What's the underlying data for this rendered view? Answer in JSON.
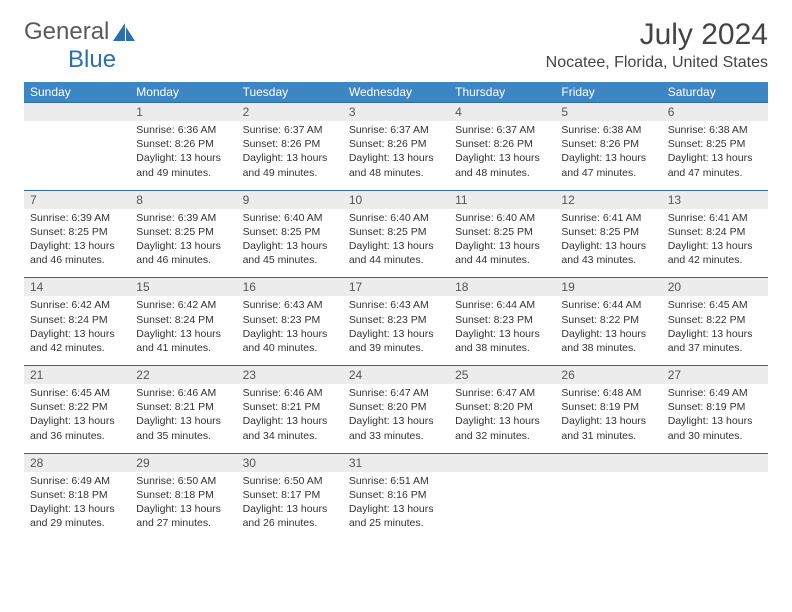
{
  "logo": {
    "word1": "General",
    "word2": "Blue",
    "mark_color": "#2b6fb3"
  },
  "title": "July 2024",
  "location": "Nocatee, Florida, United States",
  "colors": {
    "header_bg": "#3d86c6",
    "header_fg": "#ffffff",
    "daynum_bg": "#ececec",
    "row_border": "#2f6aa3",
    "text": "#333333"
  },
  "day_headers": [
    "Sunday",
    "Monday",
    "Tuesday",
    "Wednesday",
    "Thursday",
    "Friday",
    "Saturday"
  ],
  "weeks": [
    [
      null,
      {
        "n": "1",
        "sunrise": "6:36 AM",
        "sunset": "8:26 PM",
        "daylight": "13 hours and 49 minutes."
      },
      {
        "n": "2",
        "sunrise": "6:37 AM",
        "sunset": "8:26 PM",
        "daylight": "13 hours and 49 minutes."
      },
      {
        "n": "3",
        "sunrise": "6:37 AM",
        "sunset": "8:26 PM",
        "daylight": "13 hours and 48 minutes."
      },
      {
        "n": "4",
        "sunrise": "6:37 AM",
        "sunset": "8:26 PM",
        "daylight": "13 hours and 48 minutes."
      },
      {
        "n": "5",
        "sunrise": "6:38 AM",
        "sunset": "8:26 PM",
        "daylight": "13 hours and 47 minutes."
      },
      {
        "n": "6",
        "sunrise": "6:38 AM",
        "sunset": "8:25 PM",
        "daylight": "13 hours and 47 minutes."
      }
    ],
    [
      {
        "n": "7",
        "sunrise": "6:39 AM",
        "sunset": "8:25 PM",
        "daylight": "13 hours and 46 minutes."
      },
      {
        "n": "8",
        "sunrise": "6:39 AM",
        "sunset": "8:25 PM",
        "daylight": "13 hours and 46 minutes."
      },
      {
        "n": "9",
        "sunrise": "6:40 AM",
        "sunset": "8:25 PM",
        "daylight": "13 hours and 45 minutes."
      },
      {
        "n": "10",
        "sunrise": "6:40 AM",
        "sunset": "8:25 PM",
        "daylight": "13 hours and 44 minutes."
      },
      {
        "n": "11",
        "sunrise": "6:40 AM",
        "sunset": "8:25 PM",
        "daylight": "13 hours and 44 minutes."
      },
      {
        "n": "12",
        "sunrise": "6:41 AM",
        "sunset": "8:25 PM",
        "daylight": "13 hours and 43 minutes."
      },
      {
        "n": "13",
        "sunrise": "6:41 AM",
        "sunset": "8:24 PM",
        "daylight": "13 hours and 42 minutes."
      }
    ],
    [
      {
        "n": "14",
        "sunrise": "6:42 AM",
        "sunset": "8:24 PM",
        "daylight": "13 hours and 42 minutes."
      },
      {
        "n": "15",
        "sunrise": "6:42 AM",
        "sunset": "8:24 PM",
        "daylight": "13 hours and 41 minutes."
      },
      {
        "n": "16",
        "sunrise": "6:43 AM",
        "sunset": "8:23 PM",
        "daylight": "13 hours and 40 minutes."
      },
      {
        "n": "17",
        "sunrise": "6:43 AM",
        "sunset": "8:23 PM",
        "daylight": "13 hours and 39 minutes."
      },
      {
        "n": "18",
        "sunrise": "6:44 AM",
        "sunset": "8:23 PM",
        "daylight": "13 hours and 38 minutes."
      },
      {
        "n": "19",
        "sunrise": "6:44 AM",
        "sunset": "8:22 PM",
        "daylight": "13 hours and 38 minutes."
      },
      {
        "n": "20",
        "sunrise": "6:45 AM",
        "sunset": "8:22 PM",
        "daylight": "13 hours and 37 minutes."
      }
    ],
    [
      {
        "n": "21",
        "sunrise": "6:45 AM",
        "sunset": "8:22 PM",
        "daylight": "13 hours and 36 minutes."
      },
      {
        "n": "22",
        "sunrise": "6:46 AM",
        "sunset": "8:21 PM",
        "daylight": "13 hours and 35 minutes."
      },
      {
        "n": "23",
        "sunrise": "6:46 AM",
        "sunset": "8:21 PM",
        "daylight": "13 hours and 34 minutes."
      },
      {
        "n": "24",
        "sunrise": "6:47 AM",
        "sunset": "8:20 PM",
        "daylight": "13 hours and 33 minutes."
      },
      {
        "n": "25",
        "sunrise": "6:47 AM",
        "sunset": "8:20 PM",
        "daylight": "13 hours and 32 minutes."
      },
      {
        "n": "26",
        "sunrise": "6:48 AM",
        "sunset": "8:19 PM",
        "daylight": "13 hours and 31 minutes."
      },
      {
        "n": "27",
        "sunrise": "6:49 AM",
        "sunset": "8:19 PM",
        "daylight": "13 hours and 30 minutes."
      }
    ],
    [
      {
        "n": "28",
        "sunrise": "6:49 AM",
        "sunset": "8:18 PM",
        "daylight": "13 hours and 29 minutes."
      },
      {
        "n": "29",
        "sunrise": "6:50 AM",
        "sunset": "8:18 PM",
        "daylight": "13 hours and 27 minutes."
      },
      {
        "n": "30",
        "sunrise": "6:50 AM",
        "sunset": "8:17 PM",
        "daylight": "13 hours and 26 minutes."
      },
      {
        "n": "31",
        "sunrise": "6:51 AM",
        "sunset": "8:16 PM",
        "daylight": "13 hours and 25 minutes."
      },
      null,
      null,
      null
    ]
  ],
  "labels": {
    "sunrise": "Sunrise: ",
    "sunset": "Sunset: ",
    "daylight": "Daylight: "
  }
}
